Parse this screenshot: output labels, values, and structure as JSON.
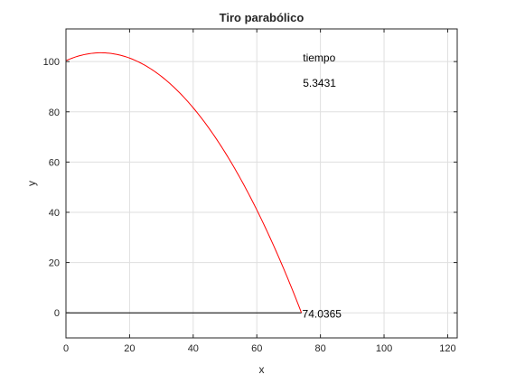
{
  "chart_data": {
    "type": "line",
    "title": "Tiro parabólico",
    "xlabel": "x",
    "ylabel": "y",
    "xlim": [
      0,
      123
    ],
    "ylim": [
      -10,
      113
    ],
    "xticks": [
      0,
      20,
      40,
      60,
      80,
      100,
      120
    ],
    "yticks": [
      0,
      20,
      40,
      60,
      80,
      100
    ],
    "grid": true,
    "series": [
      {
        "color": "#ff0000",
        "trajectory": {
          "x0": 0,
          "y0": 100,
          "x_apex": 11,
          "y_apex": 103.5,
          "x_end": 74.0365,
          "y_end": 0
        }
      },
      {
        "color": "#000000",
        "x": [
          0,
          74.0365
        ],
        "y": [
          0,
          0
        ]
      }
    ],
    "annotations": [
      {
        "text": "tiempo",
        "x": 74.5,
        "y": 101.5
      },
      {
        "text": "5.3431",
        "x": 74.5,
        "y": 91.5
      },
      {
        "text": "74.0365",
        "x": 74.3,
        "y": -0.5
      }
    ]
  }
}
